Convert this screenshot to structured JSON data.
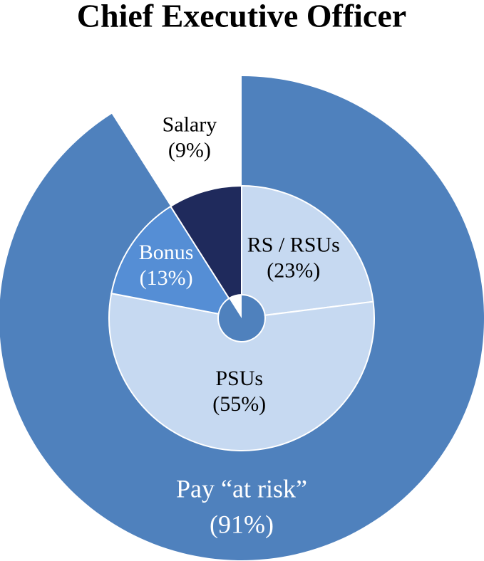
{
  "chart_data": {
    "type": "pie",
    "title": "Chief Executive Officer",
    "outer": {
      "categories": [
        "Pay “at risk”"
      ],
      "values": [
        91
      ],
      "value_labels": [
        "(91%)"
      ],
      "colors": [
        "#4f81bd"
      ]
    },
    "inner": {
      "categories": [
        "RS / RSUs",
        "PSUs",
        "Bonus",
        "Salary"
      ],
      "values": [
        23,
        55,
        13,
        9
      ],
      "value_labels": [
        "(23%)",
        "(55%)",
        "(13%)",
        "(9%)"
      ],
      "colors": [
        "#c6d9f1",
        "#c6d9f1",
        "#558ed5",
        "#1f2a5c"
      ]
    }
  }
}
